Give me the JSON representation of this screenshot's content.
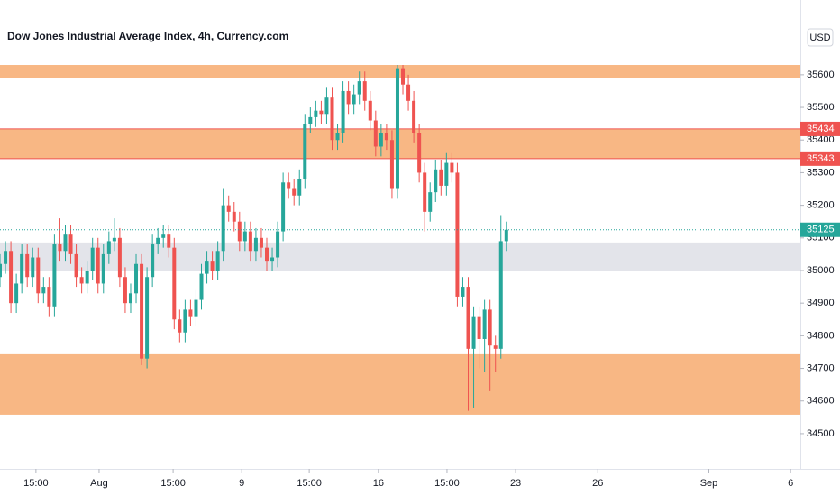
{
  "chart_data": {
    "type": "candlestick",
    "title": "Dow Jones Industrial Average Index, 4h, Currency.com",
    "currency": "USD",
    "up_color": "#26a69a",
    "down_color": "#ef5350",
    "open": [
      34980,
      35020,
      35060,
      34900,
      34960,
      35050,
      34980,
      35040,
      34930,
      34950,
      34890,
      35080,
      35060,
      35110,
      35050,
      34980,
      34960,
      35000,
      35070,
      34960,
      35050,
      35090,
      35100,
      34980,
      34900,
      34930,
      35020,
      34730,
      34980,
      35080,
      35100,
      35110,
      35070,
      34850,
      34810,
      34880,
      34860,
      34910,
      34990,
      35030,
      35000,
      35060,
      35200,
      35180,
      35150,
      35090,
      35120,
      35060,
      35100,
      35070,
      35030,
      35040,
      35120,
      35270,
      35250,
      35230,
      35280,
      35450,
      35470,
      35490,
      35480,
      35530,
      35400,
      35420,
      35550,
      35510,
      35540,
      35580,
      35520,
      35460,
      35380,
      35420,
      35400,
      35250,
      35620,
      35570,
      35520,
      35420,
      35300,
      35180,
      35240,
      35310,
      35260,
      35330,
      35300,
      34920,
      34950,
      34760,
      34860,
      34790,
      34880,
      34770,
      34760,
      35090
    ],
    "high": [
      35050,
      35090,
      35090,
      34990,
      35080,
      35080,
      35070,
      35070,
      34980,
      34980,
      35110,
      35160,
      35140,
      35140,
      35080,
      35010,
      35030,
      35100,
      35100,
      35080,
      35120,
      35160,
      35130,
      35010,
      34960,
      35050,
      35050,
      35010,
      35110,
      35130,
      35140,
      35140,
      35100,
      34880,
      34910,
      34910,
      34940,
      35020,
      35060,
      35060,
      35090,
      35250,
      35230,
      35210,
      35180,
      35150,
      35150,
      35130,
      35130,
      35100,
      35070,
      35150,
      35300,
      35300,
      35280,
      35310,
      35480,
      35500,
      35520,
      35520,
      35560,
      35560,
      35450,
      35580,
      35580,
      35570,
      35610,
      35610,
      35550,
      35490,
      35450,
      35450,
      35430,
      35630,
      35630,
      35600,
      35550,
      35450,
      35330,
      35270,
      35340,
      35340,
      35360,
      35360,
      35330,
      34980,
      34980,
      34890,
      34890,
      34910,
      34910,
      34800,
      35170,
      35150
    ],
    "low": [
      34950,
      34990,
      34870,
      34870,
      34930,
      34950,
      34950,
      34900,
      34900,
      34860,
      34860,
      35030,
      35030,
      35020,
      34950,
      34930,
      34930,
      34970,
      34930,
      34930,
      35020,
      35060,
      34950,
      34870,
      34870,
      34900,
      34710,
      34700,
      34950,
      35050,
      35070,
      35040,
      34820,
      34780,
      34780,
      34830,
      34830,
      34880,
      34960,
      34970,
      34970,
      35030,
      35150,
      35120,
      35060,
      35060,
      35030,
      35030,
      35040,
      35000,
      35000,
      35010,
      35090,
      35220,
      35200,
      35200,
      35250,
      35420,
      35440,
      35450,
      35450,
      35370,
      35370,
      35390,
      35480,
      35480,
      35510,
      35490,
      35430,
      35350,
      35350,
      35370,
      35220,
      35220,
      35540,
      35490,
      35390,
      35270,
      35120,
      35150,
      35210,
      35230,
      35230,
      35270,
      34890,
      34890,
      34570,
      34580,
      34700,
      34690,
      34630,
      34690,
      34730,
      35060
    ],
    "close": [
      35020,
      35060,
      34900,
      34960,
      35050,
      34980,
      35040,
      34930,
      34950,
      34890,
      35080,
      35060,
      35110,
      35050,
      34980,
      34960,
      35000,
      35070,
      34960,
      35050,
      35090,
      35100,
      34980,
      34900,
      34930,
      35020,
      34730,
      34980,
      35080,
      35100,
      35110,
      35070,
      34850,
      34810,
      34880,
      34860,
      34910,
      34990,
      35030,
      35000,
      35060,
      35200,
      35180,
      35150,
      35090,
      35120,
      35060,
      35100,
      35070,
      35030,
      35040,
      35120,
      35270,
      35250,
      35230,
      35280,
      35450,
      35470,
      35490,
      35480,
      35530,
      35400,
      35420,
      35550,
      35510,
      35540,
      35580,
      35520,
      35460,
      35380,
      35420,
      35400,
      35250,
      35620,
      35570,
      35520,
      35420,
      35300,
      35180,
      35240,
      35310,
      35260,
      35330,
      35300,
      34920,
      34950,
      34760,
      34860,
      34790,
      34880,
      34770,
      34760,
      35090,
      35125
    ],
    "zones": [
      {
        "from": 35589,
        "to": 35630,
        "color": "#f8b784"
      },
      {
        "from": 35343,
        "to": 35434,
        "color": "#f8b784",
        "border": "#ef5350"
      },
      {
        "from": 35000,
        "to": 35086,
        "color": "#e3e4ea"
      },
      {
        "from": 34558,
        "to": 34746,
        "color": "#f8b784"
      }
    ],
    "zone_label_color": "#ef5350",
    "last_price_color": "#26a69a",
    "xlim": [
      0,
      147
    ],
    "xticks": [
      {
        "value": 6.6,
        "label": "15:00"
      },
      {
        "value": 18.2,
        "label": "Aug"
      },
      {
        "value": 31.8,
        "label": "15:00"
      },
      {
        "value": 44.4,
        "label": "9"
      },
      {
        "value": 56.8,
        "label": "15:00"
      },
      {
        "value": 69.5,
        "label": "16"
      },
      {
        "value": 82.1,
        "label": "15:00"
      },
      {
        "value": 94.7,
        "label": "23"
      },
      {
        "value": 109.8,
        "label": "26"
      },
      {
        "value": 130.2,
        "label": "Sep"
      },
      {
        "value": 145.2,
        "label": "6"
      }
    ],
    "ylim": [
      34392,
      35829
    ],
    "yticks": [
      34500,
      34600,
      34700,
      34800,
      34900,
      35000,
      35100,
      35200,
      35300,
      35400,
      35500,
      35600
    ]
  }
}
